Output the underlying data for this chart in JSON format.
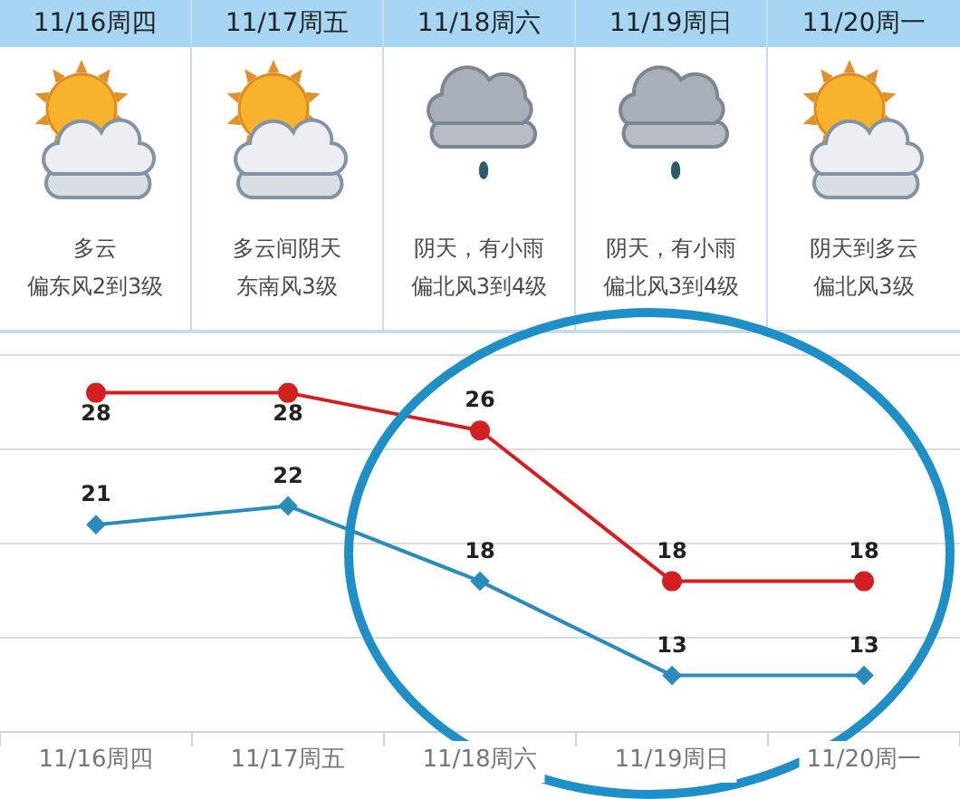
{
  "chart_data": [
    {
      "type": "other",
      "categories": [
        "11/16周四",
        "11/17周五",
        "11/18周六",
        "11/19周日",
        "11/20周一"
      ],
      "annotations": [
        "多云",
        "多云间阴天",
        "阴天，有小雨",
        "阴天，有小雨",
        "阴天到多云",
        "偏东风2到3级",
        "东南风3级",
        "偏北风3到4级",
        "偏北风3到4级",
        "偏北风3级"
      ]
    },
    {
      "type": "line",
      "categories": [
        "11/16周四",
        "11/17周五",
        "11/18周六",
        "11/19周日",
        "11/20周一"
      ],
      "series": [
        {
          "color": "#d21f1f",
          "marker": "circle",
          "values": [
            28,
            28,
            26,
            18,
            18
          ]
        },
        {
          "color": "#2b8bbb",
          "marker": "diamond",
          "values": [
            21,
            22,
            18,
            13,
            13
          ]
        }
      ],
      "ylim": [
        10,
        30
      ],
      "yticks": [
        10,
        15,
        20,
        25,
        30
      ],
      "grid": "y",
      "tick_labels": "x",
      "data_labels": true
    }
  ]
}
